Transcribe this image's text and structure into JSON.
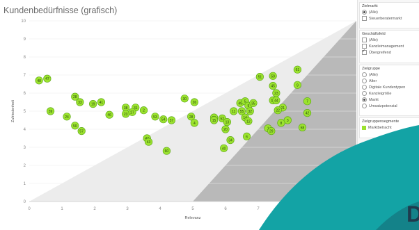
{
  "title": "Kundenbedürfnisse (grafisch)",
  "chart_data": {
    "type": "scatter",
    "xlabel": "Relevanz",
    "ylabel": "Zufriedenheit",
    "xlim": [
      0,
      10
    ],
    "ylim": [
      0,
      10
    ],
    "x_ticks": [
      "0",
      "1",
      "2",
      "3",
      "4",
      "5",
      "6",
      "7",
      "8",
      "9"
    ],
    "y_ticks": [
      "0",
      "1",
      "2",
      "3",
      "4",
      "5",
      "6",
      "7",
      "8",
      "9",
      "10"
    ],
    "point_color": "#9be22e",
    "points": [
      {
        "id": "48",
        "x": 0.3,
        "y": 6.7
      },
      {
        "id": "47",
        "x": 0.55,
        "y": 6.8
      },
      {
        "id": "39",
        "x": 0.65,
        "y": 5.0
      },
      {
        "id": "28",
        "x": 1.4,
        "y": 5.8
      },
      {
        "id": "33",
        "x": 1.55,
        "y": 5.5
      },
      {
        "id": "24",
        "x": 1.15,
        "y": 4.7
      },
      {
        "id": "50",
        "x": 1.4,
        "y": 4.2
      },
      {
        "id": "57",
        "x": 1.6,
        "y": 3.9
      },
      {
        "id": "19",
        "x": 1.95,
        "y": 5.4
      },
      {
        "id": "41",
        "x": 2.2,
        "y": 5.5
      },
      {
        "id": "46",
        "x": 2.45,
        "y": 4.8
      },
      {
        "id": "38",
        "x": 2.95,
        "y": 5.2
      },
      {
        "id": "23",
        "x": 2.95,
        "y": 4.85
      },
      {
        "id": "31",
        "x": 3.25,
        "y": 5.2
      },
      {
        "id": "27",
        "x": 3.15,
        "y": 4.95
      },
      {
        "id": "2",
        "x": 3.5,
        "y": 5.05
      },
      {
        "id": "53",
        "x": 3.85,
        "y": 4.7
      },
      {
        "id": "54",
        "x": 4.1,
        "y": 4.55
      },
      {
        "id": "37",
        "x": 4.35,
        "y": 4.5
      },
      {
        "id": "47",
        "x": 3.6,
        "y": 3.5
      },
      {
        "id": "43",
        "x": 3.65,
        "y": 3.3
      },
      {
        "id": "60",
        "x": 4.2,
        "y": 2.8
      },
      {
        "id": "30",
        "x": 4.75,
        "y": 5.7
      },
      {
        "id": "26",
        "x": 5.05,
        "y": 5.5
      },
      {
        "id": "28",
        "x": 4.95,
        "y": 4.7
      },
      {
        "id": "4",
        "x": 5.05,
        "y": 4.35
      },
      {
        "id": "52",
        "x": 5.9,
        "y": 4.6
      },
      {
        "id": "36",
        "x": 5.65,
        "y": 4.65
      },
      {
        "id": "15",
        "x": 5.65,
        "y": 4.5
      },
      {
        "id": "13",
        "x": 6.05,
        "y": 4.4
      },
      {
        "id": "20",
        "x": 6.0,
        "y": 4.0
      },
      {
        "id": "34",
        "x": 6.15,
        "y": 3.4
      },
      {
        "id": "40",
        "x": 5.95,
        "y": 2.95
      },
      {
        "id": "11",
        "x": 6.25,
        "y": 5.0
      },
      {
        "id": "49",
        "x": 6.45,
        "y": 5.45
      },
      {
        "id": "5",
        "x": 6.6,
        "y": 5.55
      },
      {
        "id": "9",
        "x": 6.7,
        "y": 5.3
      },
      {
        "id": "35",
        "x": 6.85,
        "y": 5.45
      },
      {
        "id": "55",
        "x": 6.5,
        "y": 5.0
      },
      {
        "id": "32",
        "x": 6.75,
        "y": 5.0
      },
      {
        "id": "14",
        "x": 6.6,
        "y": 4.65
      },
      {
        "id": "12",
        "x": 6.7,
        "y": 4.45
      },
      {
        "id": "6",
        "x": 6.65,
        "y": 3.6
      },
      {
        "id": "51",
        "x": 7.05,
        "y": 6.9
      },
      {
        "id": "59",
        "x": 7.45,
        "y": 6.95
      },
      {
        "id": "45",
        "x": 7.45,
        "y": 6.4
      },
      {
        "id": "23",
        "x": 7.55,
        "y": 6.0
      },
      {
        "id": "18",
        "x": 7.45,
        "y": 5.6
      },
      {
        "id": "44",
        "x": 7.55,
        "y": 5.6
      },
      {
        "id": "21",
        "x": 7.75,
        "y": 5.2
      },
      {
        "id": "22",
        "x": 7.6,
        "y": 5.05
      },
      {
        "id": "3",
        "x": 7.9,
        "y": 4.5
      },
      {
        "id": "8",
        "x": 7.7,
        "y": 4.35
      },
      {
        "id": "1",
        "x": 7.3,
        "y": 4.05
      },
      {
        "id": "29",
        "x": 7.4,
        "y": 3.9
      },
      {
        "id": "61",
        "x": 8.2,
        "y": 7.3
      },
      {
        "id": "9",
        "x": 8.2,
        "y": 6.45
      },
      {
        "id": "7",
        "x": 8.5,
        "y": 5.55
      },
      {
        "id": "42",
        "x": 8.5,
        "y": 4.9
      },
      {
        "id": "58",
        "x": 8.35,
        "y": 4.1
      }
    ]
  },
  "filters": {
    "zielmarkt": {
      "title": "Zielmarkt",
      "options": [
        {
          "label": "(Alle)",
          "type": "radio",
          "checked": true
        },
        {
          "label": "Steuerberatermarkt",
          "type": "check",
          "checked": false
        }
      ]
    },
    "geschaeftsfeld": {
      "title": "Geschäftsfeld",
      "options": [
        {
          "label": "(Alle)",
          "type": "check",
          "checked": false
        },
        {
          "label": "Kanzleimanagement",
          "type": "check",
          "checked": false
        },
        {
          "label": "Übergreifend",
          "type": "check",
          "checked": true
        }
      ]
    },
    "zielgruppe": {
      "title": "Zielgruppe",
      "options": [
        {
          "label": "(Alle)",
          "type": "radio",
          "checked": false
        },
        {
          "label": "Alter",
          "type": "radio",
          "checked": false
        },
        {
          "label": "Digitale Kundentypen",
          "type": "radio",
          "checked": false
        },
        {
          "label": "Kanzleigröße",
          "type": "radio",
          "checked": false
        },
        {
          "label": "Markt",
          "type": "radio",
          "checked": true
        },
        {
          "label": "Umsatzpotenzial",
          "type": "radio",
          "checked": false
        }
      ]
    },
    "zielgruppensegmente": {
      "title": "Zielgruppensegmente",
      "legend_label": "Marktbetracht",
      "legend_color": "#9be22e"
    }
  },
  "overlay": {
    "letter": "D",
    "teal_color": "#13a3a5",
    "dark_color": "#16505e"
  }
}
